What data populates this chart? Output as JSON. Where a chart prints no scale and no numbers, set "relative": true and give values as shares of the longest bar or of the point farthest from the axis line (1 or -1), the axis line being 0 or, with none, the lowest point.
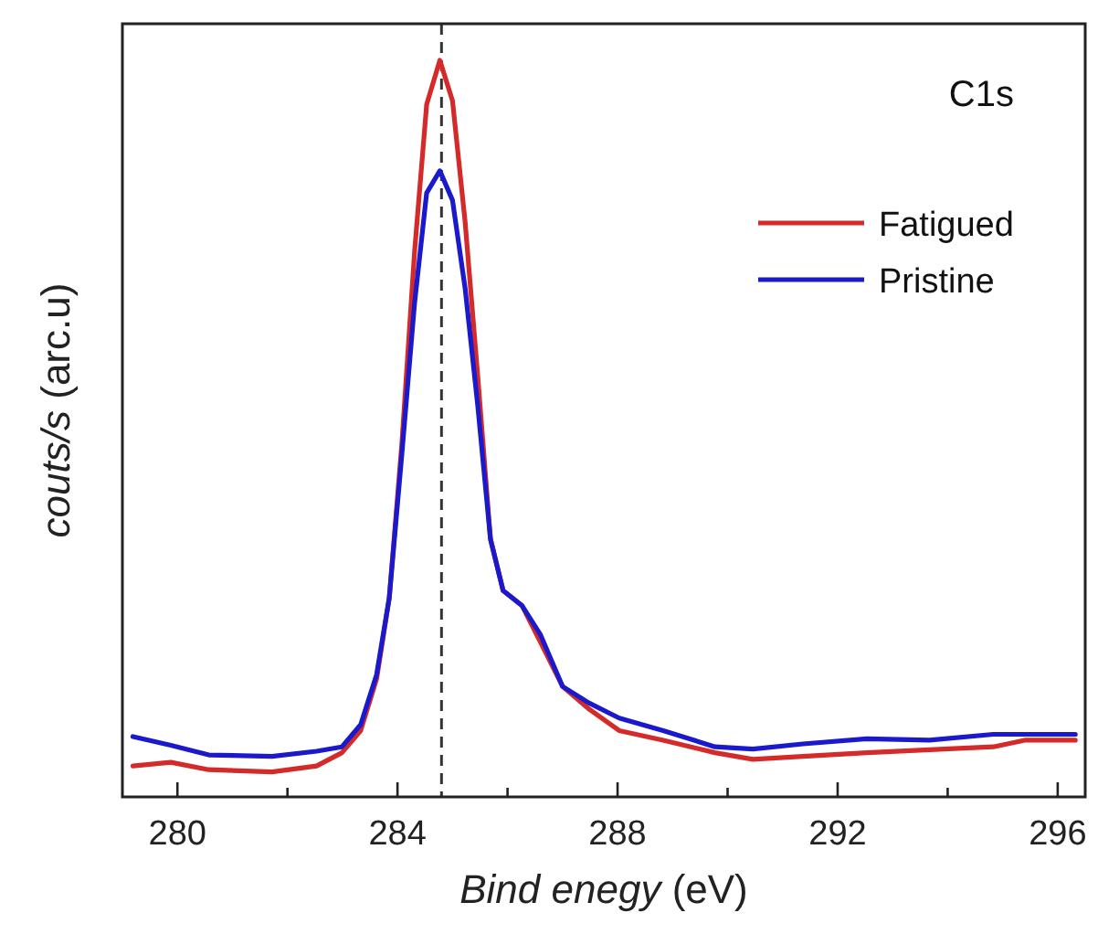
{
  "chart_data": {
    "type": "line",
    "relative": true,
    "xlabel": "Bind enegy (eV)",
    "ylabel": "couts/s (arc.u)",
    "annotations": [
      "C1s"
    ],
    "xlim": [
      279,
      296.5
    ],
    "xticks": [
      280,
      {
        "value": 282,
        "label": null
      },
      284,
      {
        "value": 286,
        "label": null
      },
      288,
      {
        "value": 290,
        "label": null
      },
      292,
      {
        "value": 294,
        "label": null
      },
      296
    ],
    "legend": "top right",
    "grid": false,
    "line_style": "solid",
    "marker": "none",
    "ref_lines": [
      {
        "axis": "x",
        "value": 284.8,
        "line_style": "dashed",
        "color": "#333333"
      }
    ],
    "series": [
      {
        "name": "Fatigued",
        "color": "#d42a2a",
        "x": [
          279.19,
          279.88,
          280.57,
          281.72,
          282.53,
          282.99,
          283.33,
          283.62,
          283.85,
          284.08,
          284.31,
          284.53,
          284.77,
          285.0,
          285.23,
          285.46,
          285.69,
          285.92,
          286.26,
          286.6,
          287.0,
          287.47,
          288.03,
          288.83,
          289.77,
          290.46,
          291.37,
          292.53,
          293.67,
          294.83,
          295.4,
          296.32
        ],
        "values": [
          0.042,
          0.047,
          0.037,
          0.034,
          0.042,
          0.06,
          0.09,
          0.16,
          0.27,
          0.48,
          0.74,
          0.94,
          1.0,
          0.945,
          0.78,
          0.57,
          0.35,
          0.28,
          0.26,
          0.21,
          0.15,
          0.12,
          0.09,
          0.077,
          0.06,
          0.051,
          0.055,
          0.06,
          0.064,
          0.068,
          0.077,
          0.077
        ]
      },
      {
        "name": "Pristine",
        "color": "#1a1acc",
        "x": [
          279.19,
          279.88,
          280.57,
          281.72,
          282.53,
          282.99,
          283.33,
          283.62,
          283.85,
          284.08,
          284.31,
          284.53,
          284.77,
          285.0,
          285.23,
          285.46,
          285.69,
          285.92,
          286.26,
          286.6,
          287.0,
          287.47,
          288.03,
          288.83,
          289.77,
          290.46,
          291.37,
          292.53,
          293.67,
          294.83,
          295.4,
          296.32
        ],
        "values": [
          0.082,
          0.07,
          0.057,
          0.055,
          0.062,
          0.068,
          0.098,
          0.166,
          0.27,
          0.466,
          0.67,
          0.82,
          0.85,
          0.81,
          0.69,
          0.53,
          0.35,
          0.28,
          0.26,
          0.22,
          0.15,
          0.128,
          0.107,
          0.09,
          0.068,
          0.065,
          0.072,
          0.079,
          0.077,
          0.085,
          0.085,
          0.085
        ]
      }
    ]
  }
}
